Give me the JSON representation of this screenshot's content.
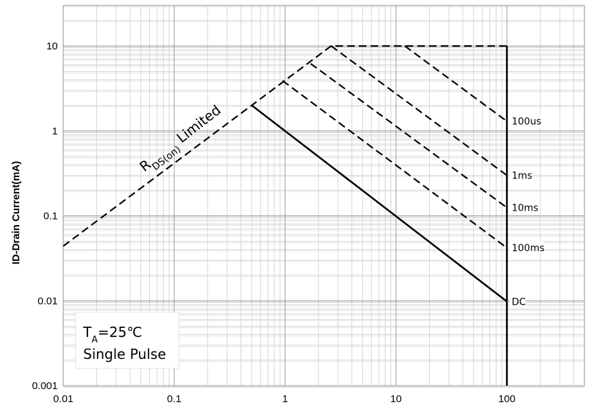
{
  "chart_data": {
    "type": "line",
    "title": "",
    "xlabel": "",
    "ylabel": "ID-Drain Current(mA)",
    "x_scale": "log",
    "y_scale": "log",
    "xlim": [
      0.01,
      500
    ],
    "ylim": [
      0.001,
      30
    ],
    "grid": true,
    "x_tick_labels": [
      "0.01",
      "0.1",
      "1",
      "10",
      "100"
    ],
    "x_ticks": [
      0.01,
      0.1,
      1,
      10,
      100
    ],
    "y_tick_labels": [
      "0.001",
      "0.01",
      "0.1",
      "1",
      "10"
    ],
    "y_ticks": [
      0.001,
      0.01,
      0.1,
      1,
      10
    ],
    "series": [
      {
        "name": "",
        "style": "dashed",
        "points": [
          [
            0.01,
            0.044
          ],
          [
            0.5,
            2.0
          ],
          [
            2.6,
            10.0
          ],
          [
            100,
            10.0
          ]
        ]
      },
      {
        "name": "100us",
        "style": "dashed",
        "points": [
          [
            12,
            10.0
          ],
          [
            100,
            1.3
          ]
        ]
      },
      {
        "name": "1ms",
        "style": "dashed",
        "points": [
          [
            2.6,
            10.0
          ],
          [
            100,
            0.3
          ]
        ]
      },
      {
        "name": "10ms",
        "style": "dashed",
        "points": [
          [
            1.7,
            6.2
          ],
          [
            100,
            0.125
          ]
        ]
      },
      {
        "name": "100ms",
        "style": "dashed",
        "points": [
          [
            0.95,
            3.9
          ],
          [
            100,
            0.042
          ]
        ]
      },
      {
        "name": "DC",
        "style": "solid",
        "points": [
          [
            0.5,
            2.0
          ],
          [
            100,
            0.0098
          ]
        ]
      },
      {
        "name": "",
        "style": "solid",
        "points": [
          [
            100,
            10.0
          ],
          [
            100,
            0.001
          ]
        ]
      }
    ],
    "annotations": {
      "rds_main": "R",
      "rds_sub": "DS(on)",
      "rds_tail": " Limited",
      "ta_main": "T",
      "ta_sub": "A",
      "ta_tail": "=25℃",
      "pulse": "Single Pulse"
    }
  }
}
